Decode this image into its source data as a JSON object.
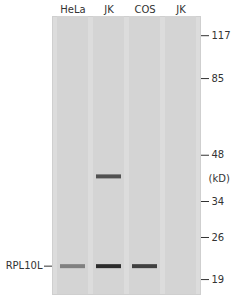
{
  "chart_data": {
    "type": "western_blot",
    "lanes": [
      "HeLa",
      "JK",
      "COS",
      "JK"
    ],
    "markers": [
      117,
      85,
      48,
      34,
      26,
      19
    ],
    "unit_label": "(kD)",
    "ylim": [
      17,
      135
    ],
    "log": "y",
    "target": {
      "label": "RPL10L",
      "kd": 21
    },
    "bands": [
      {
        "lane": 0,
        "kd": 21,
        "intensity": 0.45
      },
      {
        "lane": 1,
        "kd": 21,
        "intensity": 0.9
      },
      {
        "lane": 2,
        "kd": 21,
        "intensity": 0.8
      },
      {
        "lane": 1,
        "kd": 41,
        "intensity": 0.7
      }
    ]
  }
}
